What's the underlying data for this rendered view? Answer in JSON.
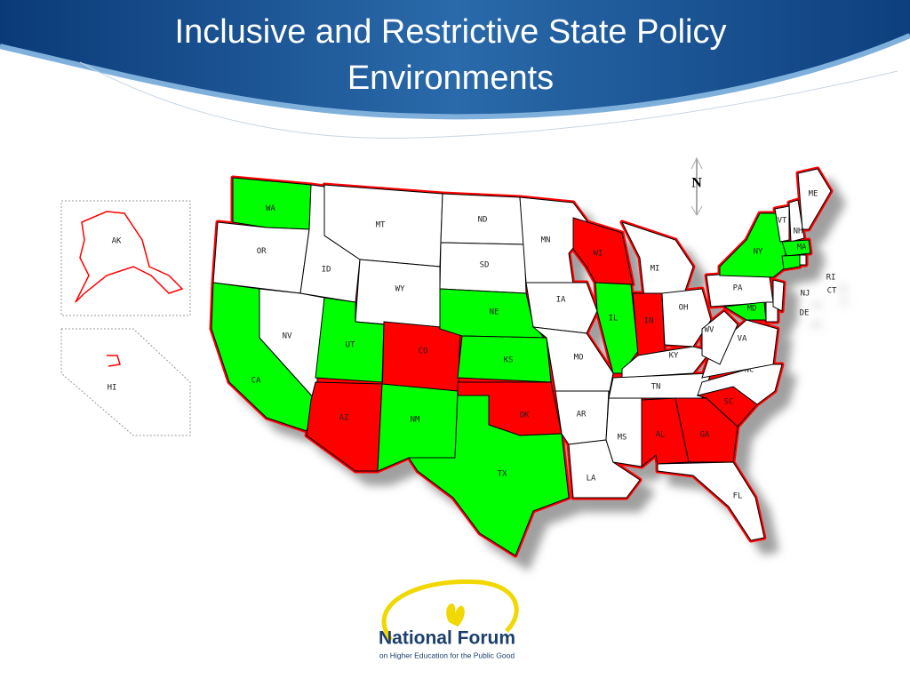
{
  "title": "Inclusive and Restrictive State Policy Environments",
  "compass": "N",
  "map": {
    "outline_color": "#ff0000",
    "states": [
      {
        "label": "WA",
        "color": "#00ff00"
      },
      {
        "label": "OR",
        "color": "#ffffff"
      },
      {
        "label": "CA",
        "color": "#00ff00"
      },
      {
        "label": "NV",
        "color": "#ffffff"
      },
      {
        "label": "ID",
        "color": "#ffffff"
      },
      {
        "label": "MT",
        "color": "#ffffff"
      },
      {
        "label": "WY",
        "color": "#ffffff"
      },
      {
        "label": "UT",
        "color": "#00ff00"
      },
      {
        "label": "CO",
        "color": "#ff0000"
      },
      {
        "label": "AZ",
        "color": "#ff0000"
      },
      {
        "label": "NM",
        "color": "#00ff00"
      },
      {
        "label": "ND",
        "color": "#ffffff"
      },
      {
        "label": "SD",
        "color": "#ffffff"
      },
      {
        "label": "NE",
        "color": "#00ff00"
      },
      {
        "label": "KS",
        "color": "#00ff00"
      },
      {
        "label": "OK",
        "color": "#ff0000"
      },
      {
        "label": "TX",
        "color": "#00ff00"
      },
      {
        "label": "MN",
        "color": "#ffffff"
      },
      {
        "label": "IA",
        "color": "#ffffff"
      },
      {
        "label": "MO",
        "color": "#ffffff"
      },
      {
        "label": "AR",
        "color": "#ffffff"
      },
      {
        "label": "LA",
        "color": "#ffffff"
      },
      {
        "label": "WI",
        "color": "#ff0000"
      },
      {
        "label": "IL",
        "color": "#00ff00"
      },
      {
        "label": "MI",
        "color": "#ffffff"
      },
      {
        "label": "IN",
        "color": "#ff0000"
      },
      {
        "label": "OH",
        "color": "#ffffff"
      },
      {
        "label": "KY",
        "color": "#ffffff"
      },
      {
        "label": "TN",
        "color": "#ffffff"
      },
      {
        "label": "MS",
        "color": "#ffffff"
      },
      {
        "label": "AL",
        "color": "#ff0000"
      },
      {
        "label": "GA",
        "color": "#ff0000"
      },
      {
        "label": "FL",
        "color": "#ffffff"
      },
      {
        "label": "SC",
        "color": "#ff0000"
      },
      {
        "label": "NC",
        "color": "#ffffff"
      },
      {
        "label": "VA",
        "color": "#ffffff"
      },
      {
        "label": "WV",
        "color": "#ffffff"
      },
      {
        "label": "PA",
        "color": "#ffffff"
      },
      {
        "label": "MD",
        "color": "#00ff00"
      },
      {
        "label": "DE",
        "color": "#ffffff"
      },
      {
        "label": "NJ",
        "color": "#ffffff"
      },
      {
        "label": "NY",
        "color": "#00ff00"
      },
      {
        "label": "VT",
        "color": "#ffffff"
      },
      {
        "label": "NH",
        "color": "#ffffff"
      },
      {
        "label": "ME",
        "color": "#ffffff"
      },
      {
        "label": "MA",
        "color": "#00ff00"
      },
      {
        "label": "CT",
        "color": "#00ff00"
      },
      {
        "label": "RI",
        "color": "#ffffff"
      }
    ],
    "insets": [
      {
        "label": "AK",
        "color": "#ffffff"
      },
      {
        "label": "HI",
        "color": "#ffffff"
      }
    ]
  },
  "logo": {
    "name": "National Forum",
    "tagline": "on Higher Education for the Public Good"
  }
}
